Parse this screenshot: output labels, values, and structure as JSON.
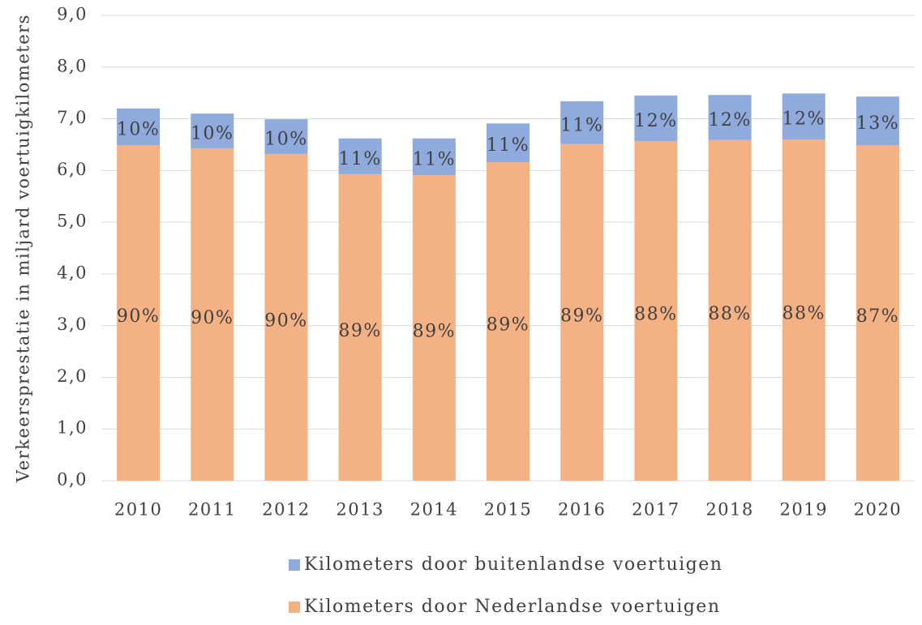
{
  "chart_data": {
    "type": "stacked_bar",
    "y_label": "Verkeersprestatie in miljard voertuigkilometers",
    "categories": [
      "2010",
      "2011",
      "2012",
      "2013",
      "2014",
      "2015",
      "2016",
      "2017",
      "2018",
      "2019",
      "2020"
    ],
    "series": [
      {
        "name": "Kilometers door Nederlandse voertuigen",
        "color": "#f4b183",
        "values": [
          6.49,
          6.43,
          6.32,
          5.93,
          5.91,
          6.16,
          6.51,
          6.57,
          6.59,
          6.6,
          6.49
        ],
        "data_labels": [
          "90%",
          "90%",
          "90%",
          "89%",
          "89%",
          "89%",
          "89%",
          "88%",
          "88%",
          "88%",
          "87%"
        ]
      },
      {
        "name": "Kilometers door buitenlandse voertuigen",
        "color": "#8faadc",
        "values": [
          0.71,
          0.67,
          0.67,
          0.69,
          0.71,
          0.75,
          0.83,
          0.88,
          0.87,
          0.89,
          0.94
        ],
        "data_labels": [
          "10%",
          "10%",
          "10%",
          "11%",
          "11%",
          "11%",
          "11%",
          "12%",
          "12%",
          "12%",
          "13%"
        ]
      }
    ],
    "ylim": [
      0,
      9
    ],
    "yticks": [
      {
        "value": 0,
        "label": "0,0"
      },
      {
        "value": 1,
        "label": "1,0"
      },
      {
        "value": 2,
        "label": "2,0"
      },
      {
        "value": 3,
        "label": "3,0"
      },
      {
        "value": 4,
        "label": "4,0"
      },
      {
        "value": 5,
        "label": "5,0"
      },
      {
        "value": 6,
        "label": "6,0"
      },
      {
        "value": 7,
        "label": "7,0"
      },
      {
        "value": 8,
        "label": "8,0"
      },
      {
        "value": 9,
        "label": "9,0"
      }
    ],
    "grid": true,
    "legend": "bottom"
  }
}
